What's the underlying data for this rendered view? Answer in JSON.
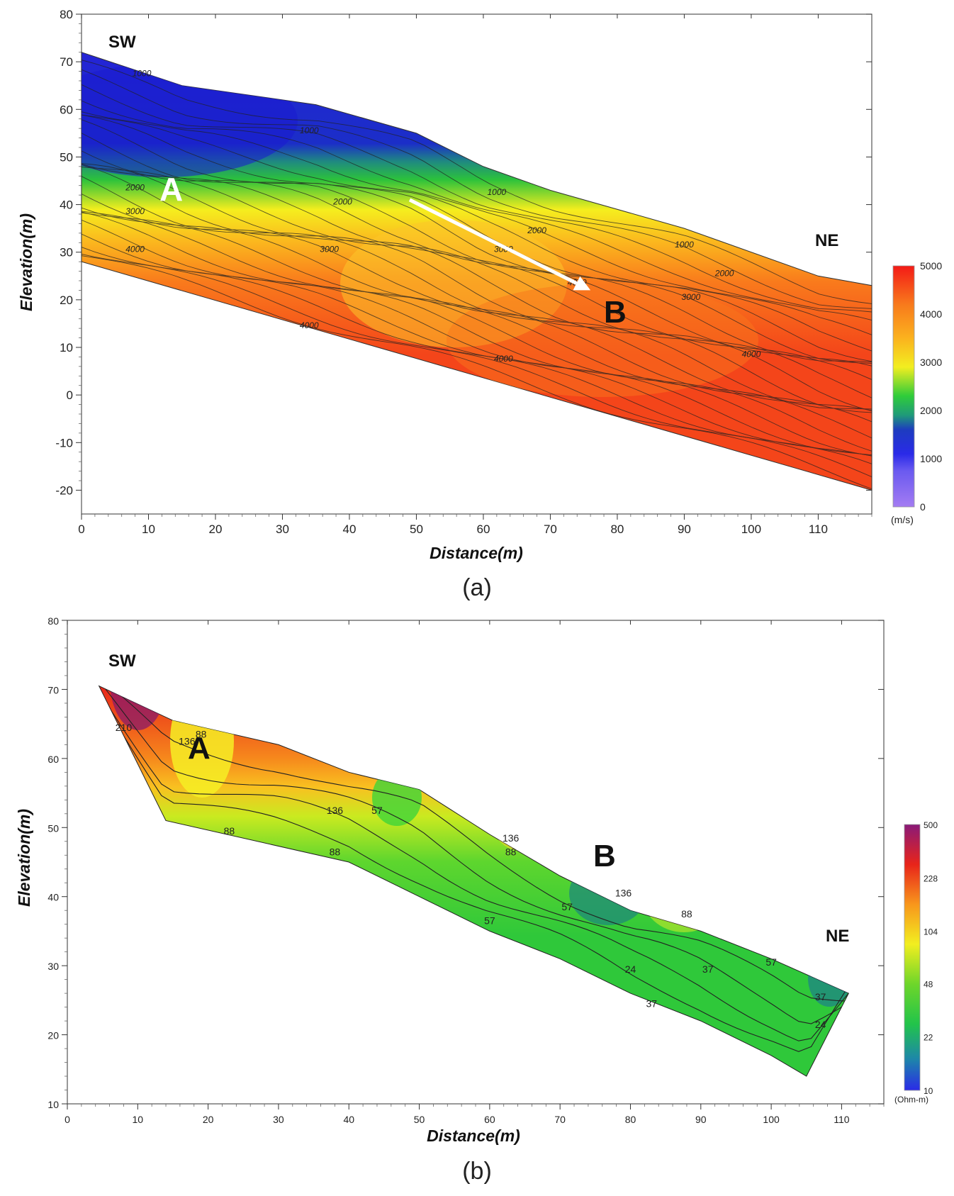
{
  "panels": [
    {
      "id": "a",
      "caption": "(a)",
      "labels": {
        "sw": "SW",
        "ne": "NE",
        "zone_a": "A",
        "zone_b": "B"
      },
      "cbar_unit": "(m/s)",
      "chart_data": {
        "type": "heatmap",
        "quantity": "velocity",
        "xlabel": "Distance(m)",
        "ylabel": "Elevation(m)",
        "xlim": [
          0,
          118
        ],
        "ylim": [
          -25,
          80
        ],
        "xticks": [
          0,
          10,
          20,
          30,
          40,
          50,
          60,
          70,
          80,
          90,
          100,
          110
        ],
        "yticks": [
          -20,
          -10,
          0,
          10,
          20,
          30,
          40,
          50,
          60,
          70,
          80
        ],
        "top_surface": [
          [
            0,
            72
          ],
          [
            15,
            65
          ],
          [
            35,
            61
          ],
          [
            50,
            55
          ],
          [
            60,
            48
          ],
          [
            70,
            43
          ],
          [
            90,
            35
          ],
          [
            110,
            25
          ],
          [
            118,
            23
          ]
        ],
        "bottom_surface": [
          [
            0,
            28
          ],
          [
            118,
            -20
          ]
        ],
        "colorbar": {
          "min": 0,
          "max": 5000,
          "ticks": [
            0,
            1000,
            2000,
            3000,
            4000,
            5000
          ]
        },
        "contour_labels": [
          {
            "value": "1000",
            "x": 9,
            "y": 67
          },
          {
            "value": "1000",
            "x": 34,
            "y": 55
          },
          {
            "value": "1000",
            "x": 62,
            "y": 42
          },
          {
            "value": "1000",
            "x": 90,
            "y": 31
          },
          {
            "value": "2000",
            "x": 8,
            "y": 43
          },
          {
            "value": "2000",
            "x": 39,
            "y": 40
          },
          {
            "value": "2000",
            "x": 68,
            "y": 34
          },
          {
            "value": "2000",
            "x": 96,
            "y": 25
          },
          {
            "value": "3000",
            "x": 8,
            "y": 38
          },
          {
            "value": "3000",
            "x": 37,
            "y": 30
          },
          {
            "value": "3000",
            "x": 63,
            "y": 30
          },
          {
            "value": "3000",
            "x": 91,
            "y": 20
          },
          {
            "value": "4000",
            "x": 8,
            "y": 30
          },
          {
            "value": "4000",
            "x": 34,
            "y": 14
          },
          {
            "value": "4000",
            "x": 63,
            "y": 7
          },
          {
            "value": "4000",
            "x": 74,
            "y": 23
          },
          {
            "value": "4000",
            "x": 100,
            "y": 8
          }
        ],
        "arrow": {
          "from": [
            49,
            41
          ],
          "to": [
            76,
            22
          ]
        }
      }
    },
    {
      "id": "b",
      "caption": "(b)",
      "labels": {
        "sw": "SW",
        "ne": "NE",
        "zone_a": "A",
        "zone_b": "B"
      },
      "cbar_unit": "(Ohm-m)",
      "chart_data": {
        "type": "heatmap",
        "quantity": "resistivity",
        "xlabel": "Distance(m)",
        "ylabel": "Elevation(m)",
        "xlim": [
          0,
          116
        ],
        "ylim": [
          10,
          80
        ],
        "xticks": [
          0,
          10,
          20,
          30,
          40,
          50,
          60,
          70,
          80,
          90,
          100,
          110
        ],
        "yticks": [
          10,
          20,
          30,
          40,
          50,
          60,
          70,
          80
        ],
        "top_surface": [
          [
            4.5,
            70.5
          ],
          [
            15,
            65.5
          ],
          [
            30,
            62
          ],
          [
            40,
            58
          ],
          [
            50,
            55.5
          ],
          [
            60,
            49
          ],
          [
            70,
            43
          ],
          [
            80,
            38
          ],
          [
            90,
            35
          ],
          [
            100,
            31
          ],
          [
            111,
            26
          ]
        ],
        "bottom_surface": [
          [
            4.5,
            70.5
          ],
          [
            14,
            51
          ],
          [
            40,
            45
          ],
          [
            50,
            40
          ],
          [
            60,
            35
          ],
          [
            70,
            31
          ],
          [
            80,
            26
          ],
          [
            90,
            22
          ],
          [
            100,
            17
          ],
          [
            105,
            14
          ],
          [
            111,
            26
          ]
        ],
        "colorbar": {
          "ticks": [
            10,
            22,
            48,
            104,
            228,
            500
          ],
          "scale": "log"
        },
        "contour_labels": [
          {
            "value": "210",
            "x": 8,
            "y": 64
          },
          {
            "value": "136",
            "x": 17,
            "y": 62
          },
          {
            "value": "88",
            "x": 19,
            "y": 63
          },
          {
            "value": "88",
            "x": 23,
            "y": 49
          },
          {
            "value": "136",
            "x": 38,
            "y": 52
          },
          {
            "value": "88",
            "x": 38,
            "y": 46
          },
          {
            "value": "57",
            "x": 44,
            "y": 52
          },
          {
            "value": "136",
            "x": 63,
            "y": 48
          },
          {
            "value": "88",
            "x": 63,
            "y": 46
          },
          {
            "value": "57",
            "x": 60,
            "y": 36
          },
          {
            "value": "57",
            "x": 71,
            "y": 38
          },
          {
            "value": "136",
            "x": 79,
            "y": 40
          },
          {
            "value": "88",
            "x": 88,
            "y": 37
          },
          {
            "value": "57",
            "x": 100,
            "y": 30
          },
          {
            "value": "24",
            "x": 80,
            "y": 29
          },
          {
            "value": "37",
            "x": 83,
            "y": 24
          },
          {
            "value": "37",
            "x": 91,
            "y": 29
          },
          {
            "value": "37",
            "x": 107,
            "y": 25
          },
          {
            "value": "24",
            "x": 107,
            "y": 21
          }
        ]
      }
    }
  ],
  "colors": {
    "blue_deep": "#1a1acc",
    "blue": "#2a3ae8",
    "violet": "#7060f0",
    "teal": "#1f9a7a",
    "green": "#2fc43a",
    "yellow": "#f2ee20",
    "orange": "#f98a1c",
    "red": "#f32a16",
    "purple": "#7a1a6a"
  }
}
